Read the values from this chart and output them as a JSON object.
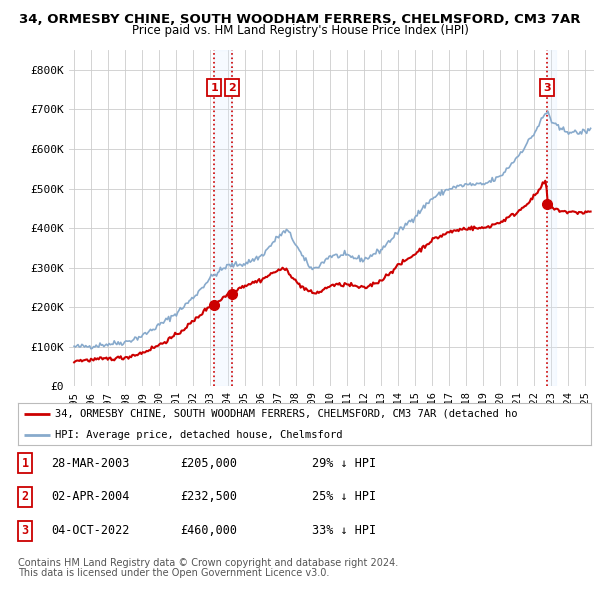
{
  "title1": "34, ORMESBY CHINE, SOUTH WOODHAM FERRERS, CHELMSFORD, CM3 7AR",
  "title2": "Price paid vs. HM Land Registry's House Price Index (HPI)",
  "ylabel_ticks": [
    "£0",
    "£100K",
    "£200K",
    "£300K",
    "£400K",
    "£500K",
    "£600K",
    "£700K",
    "£800K"
  ],
  "ytick_values": [
    0,
    100000,
    200000,
    300000,
    400000,
    500000,
    600000,
    700000,
    800000
  ],
  "ylim": [
    0,
    850000
  ],
  "xlim_start": 1994.7,
  "xlim_end": 2025.5,
  "sale_dates": [
    2003.22,
    2004.26,
    2022.76
  ],
  "sale_prices": [
    205000,
    232500,
    460000
  ],
  "sale_labels": [
    "1",
    "2",
    "3"
  ],
  "vline_color": "#cc0000",
  "shade_color": "#ddeeff",
  "marker_color": "#cc0000",
  "hpi_line_color": "#88aacc",
  "price_line_color": "#cc0000",
  "legend_label_red": "34, ORMESBY CHINE, SOUTH WOODHAM FERRERS, CHELMSFORD, CM3 7AR (detached ho",
  "legend_label_blue": "HPI: Average price, detached house, Chelmsford",
  "table_data": [
    {
      "label": "1",
      "date": "28-MAR-2003",
      "price": "£205,000",
      "hpi": "29% ↓ HPI"
    },
    {
      "label": "2",
      "date": "02-APR-2004",
      "price": "£232,500",
      "hpi": "25% ↓ HPI"
    },
    {
      "label": "3",
      "date": "04-OCT-2022",
      "price": "£460,000",
      "hpi": "33% ↓ HPI"
    }
  ],
  "footnote1": "Contains HM Land Registry data © Crown copyright and database right 2024.",
  "footnote2": "This data is licensed under the Open Government Licence v3.0.",
  "bg_color": "#ffffff",
  "grid_color": "#cccccc",
  "x_ticks": [
    1995,
    1996,
    1997,
    1998,
    1999,
    2000,
    2001,
    2002,
    2003,
    2004,
    2005,
    2006,
    2007,
    2008,
    2009,
    2010,
    2011,
    2012,
    2013,
    2014,
    2015,
    2016,
    2017,
    2018,
    2019,
    2020,
    2021,
    2022,
    2023,
    2024,
    2025
  ]
}
